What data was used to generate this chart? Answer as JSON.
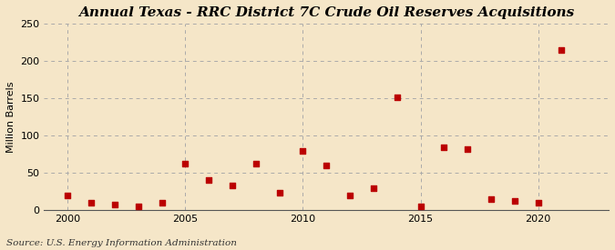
{
  "title": "Annual Texas - RRC District 7C Crude Oil Reserves Acquisitions",
  "ylabel": "Million Barrels",
  "source": "Source: U.S. Energy Information Administration",
  "years": [
    2000,
    2001,
    2002,
    2003,
    2004,
    2005,
    2006,
    2007,
    2008,
    2009,
    2010,
    2011,
    2012,
    2013,
    2014,
    2015,
    2016,
    2017,
    2018,
    2019,
    2020,
    2021
  ],
  "values": [
    20,
    10,
    8,
    5,
    10,
    63,
    40,
    33,
    62,
    23,
    80,
    60,
    20,
    30,
    152,
    5,
    85,
    82,
    15,
    13,
    10,
    215
  ],
  "marker_color": "#bb0000",
  "marker_size": 18,
  "background_color": "#f5e6c8",
  "grid_color": "#aaaaaa",
  "xlim": [
    1999,
    2023
  ],
  "ylim": [
    0,
    250
  ],
  "yticks": [
    0,
    50,
    100,
    150,
    200,
    250
  ],
  "xticks": [
    2000,
    2005,
    2010,
    2015,
    2020
  ],
  "title_fontsize": 11,
  "ylabel_fontsize": 8,
  "tick_fontsize": 8,
  "source_fontsize": 7.5
}
